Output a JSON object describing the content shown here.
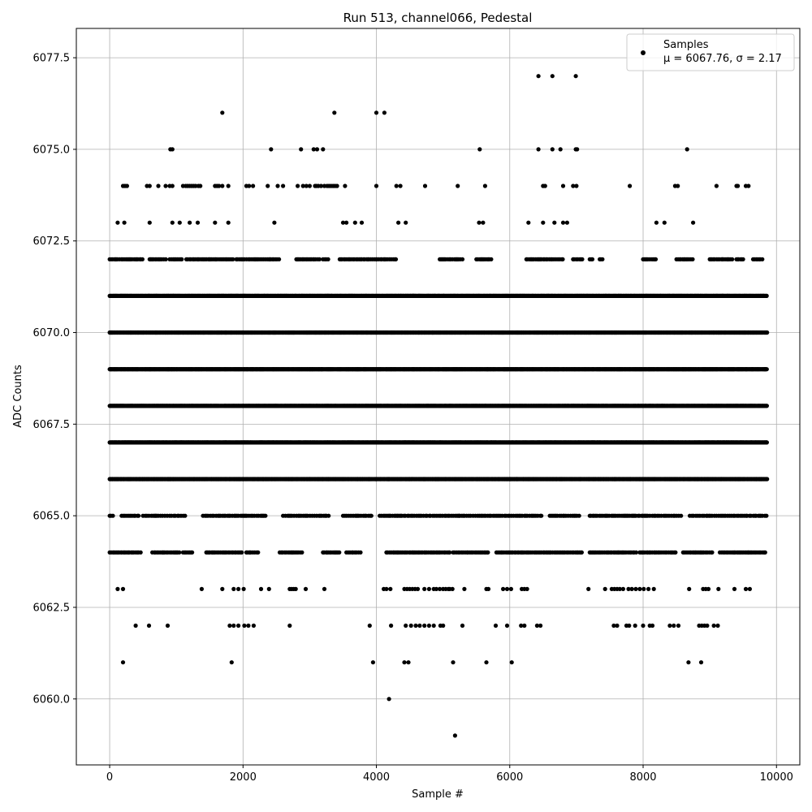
{
  "chart_data": {
    "type": "scatter",
    "title": "Run 513, channel066, Pedestal",
    "xlabel": "Sample #",
    "ylabel": "ADC Counts",
    "xlim": [
      -500,
      10350
    ],
    "ylim": [
      6058.2,
      6078.3
    ],
    "xticks": [
      0,
      2000,
      4000,
      6000,
      8000,
      10000
    ],
    "xtick_labels": [
      "0",
      "2000",
      "4000",
      "6000",
      "8000",
      "10000"
    ],
    "yticks": [
      6060.0,
      6062.5,
      6065.0,
      6067.5,
      6070.0,
      6072.5,
      6075.0,
      6077.5
    ],
    "ytick_labels": [
      "6060.0",
      "6062.5",
      "6065.0",
      "6067.5",
      "6070.0",
      "6072.5",
      "6075.0",
      "6077.5"
    ],
    "grid": true,
    "legend_position": "top-right",
    "marker_color": "#000000",
    "series": [
      {
        "name": "Samples",
        "stats_label": "μ = 6067.76, σ = 2.17",
        "n_samples": 9856,
        "levels": [
          {
            "y": 6064,
            "segments": [
              [
                0,
                480
              ],
              [
                640,
                1050
              ],
              [
                1100,
                1250
              ],
              [
                1450,
                2000
              ],
              [
                2050,
                2250
              ],
              [
                2550,
                2900
              ],
              [
                3200,
                3450
              ],
              [
                3550,
                3780
              ],
              [
                4150,
                5100
              ],
              [
                5150,
                5700
              ],
              [
                5800,
                7100
              ],
              [
                7200,
                7900
              ],
              [
                7950,
                8500
              ],
              [
                8600,
                9050
              ],
              [
                9150,
                9850
              ]
            ],
            "step": 22
          },
          {
            "y": 6065,
            "segments": [
              [
                0,
                60
              ],
              [
                180,
                450
              ],
              [
                500,
                1150
              ],
              [
                1400,
                2350
              ],
              [
                2600,
                3300
              ],
              [
                3500,
                3950
              ],
              [
                4050,
                5250
              ],
              [
                5250,
                6500
              ],
              [
                6600,
                7050
              ],
              [
                7200,
                8600
              ],
              [
                8700,
                9850
              ]
            ],
            "step": 26
          },
          {
            "y": 6066,
            "segments": [
              [
                0,
                9860
              ]
            ],
            "step": 8
          },
          {
            "y": 6067,
            "segments": [
              [
                0,
                9860
              ]
            ],
            "step": 7
          },
          {
            "y": 6068,
            "segments": [
              [
                0,
                9860
              ]
            ],
            "step": 7
          },
          {
            "y": 6069,
            "segments": [
              [
                0,
                9860
              ]
            ],
            "step": 7
          },
          {
            "y": 6070,
            "segments": [
              [
                0,
                9860
              ]
            ],
            "step": 8
          },
          {
            "y": 6071,
            "segments": [
              [
                0,
                9860
              ]
            ],
            "step": 9
          },
          {
            "y": 6072,
            "segments": [
              [
                0,
                500
              ],
              [
                600,
                850
              ],
              [
                900,
                1100
              ],
              [
                1150,
                1850
              ],
              [
                1900,
                2550
              ],
              [
                2800,
                3150
              ],
              [
                3200,
                3300
              ],
              [
                3450,
                4300
              ],
              [
                4950,
                5300
              ],
              [
                5500,
                5750
              ],
              [
                6250,
                6800
              ],
              [
                6950,
                7100
              ],
              [
                7200,
                7250
              ],
              [
                7350,
                7400
              ],
              [
                8000,
                8200
              ],
              [
                8500,
                8750
              ],
              [
                9000,
                9350
              ],
              [
                9400,
                9500
              ],
              [
                9650,
                9800
              ]
            ],
            "step": 22
          },
          {
            "y": 6073,
            "x": [
              120,
              220,
              600,
              940,
              1050,
              1200,
              1320,
              1580,
              1780,
              2470,
              3500,
              3550,
              3680,
              3780,
              4330,
              4440,
              5540,
              5600,
              6280,
              6500,
              6670,
              6800,
              6860,
              8200,
              8320,
              8750
            ]
          },
          {
            "y": 6074,
            "x": [
              200,
              230,
              260,
              560,
              600,
              730,
              840,
              900,
              940,
              1100,
              1140,
              1170,
              1200,
              1230,
              1260,
              1290,
              1330,
              1360,
              1580,
              1610,
              1640,
              1690,
              1780,
              2050,
              2090,
              2150,
              2370,
              2520,
              2600,
              2820,
              2900,
              2950,
              3000,
              3080,
              3100,
              3130,
              3170,
              3220,
              3260,
              3290,
              3320,
              3350,
              3380,
              3410,
              3530,
              4000,
              4300,
              4360,
              4730,
              5220,
              5630,
              6500,
              6530,
              6800,
              6950,
              7000,
              7800,
              8480,
              8520,
              9100,
              9400,
              9420,
              9540,
              9580
            ]
          },
          {
            "y": 6075,
            "x": [
              910,
              940,
              2420,
              2870,
              3060,
              3110,
              3200,
              5550,
              6430,
              6640,
              6760,
              6990,
              7010,
              8660
            ]
          },
          {
            "y": 6076,
            "x": [
              1690,
              3370,
              4000,
              4120
            ]
          },
          {
            "y": 6077,
            "x": [
              6430,
              6640,
              6990
            ]
          },
          {
            "y": 6063,
            "x": [
              120,
              200,
              1380,
              1690,
              1860,
              1930,
              2010,
              2270,
              2390,
              2700,
              2730,
              2760,
              2790,
              2940,
              3220,
              4110,
              4150,
              4210,
              4420,
              4460,
              4500,
              4540,
              4580,
              4620,
              4720,
              4790,
              4860,
              4900,
              4950,
              5000,
              5040,
              5080,
              5100,
              5140,
              5320,
              5650,
              5680,
              5900,
              5960,
              6020,
              6180,
              6220,
              6260,
              7180,
              7430,
              7530,
              7570,
              7610,
              7650,
              7700,
              7780,
              7830,
              7890,
              7950,
              8010,
              8080,
              8160,
              8690,
              8900,
              8940,
              8980,
              9130,
              9370,
              9540,
              9600
            ]
          },
          {
            "y": 6062,
            "x": [
              390,
              590,
              870,
              1800,
              1860,
              1930,
              2020,
              2080,
              2160,
              2700,
              3900,
              4220,
              4440,
              4520,
              4590,
              4650,
              4720,
              4790,
              4860,
              4960,
              5000,
              5290,
              5790,
              5960,
              6170,
              6220,
              6410,
              6460,
              7560,
              7610,
              7750,
              7790,
              7880,
              8000,
              8100,
              8140,
              8400,
              8460,
              8530,
              8840,
              8880,
              8920,
              8960,
              9060,
              9120
            ]
          },
          {
            "y": 6061,
            "x": [
              200,
              1830,
              3950,
              4420,
              4480,
              5150,
              5650,
              6030,
              8680,
              8870
            ]
          },
          {
            "y": 6060,
            "x": [
              4190
            ]
          },
          {
            "y": 6059,
            "x": [
              5180
            ]
          }
        ]
      }
    ]
  }
}
